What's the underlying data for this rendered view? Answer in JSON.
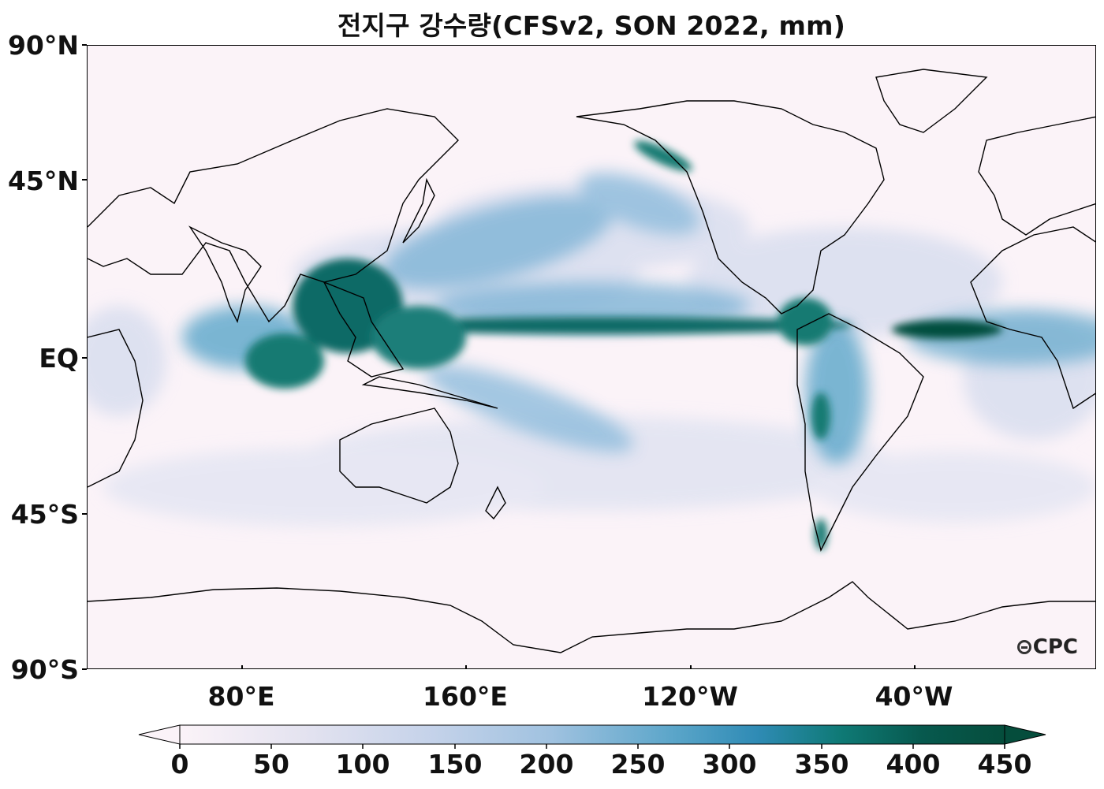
{
  "title": "전지구 강수량(CFSv2, SON 2022, mm)",
  "map": {
    "lat_ticks": [
      "90°N",
      "45°N",
      "EQ",
      "45°S",
      "90°S"
    ],
    "lon_ticks": [
      "80°E",
      "160°E",
      "120°W",
      "40°W"
    ],
    "logo": "CPC",
    "colors": {
      "background": "#fbf3f8",
      "low": "#c6d3ea",
      "mid": "#4a9fc6",
      "high": "#0b6b66",
      "max": "#054d3c",
      "coast": "#000000"
    }
  },
  "colorbar": {
    "ticks": [
      "0",
      "50",
      "100",
      "150",
      "200",
      "250",
      "300",
      "350",
      "400",
      "450"
    ],
    "min": 0,
    "max": 450,
    "extend": "both"
  }
}
